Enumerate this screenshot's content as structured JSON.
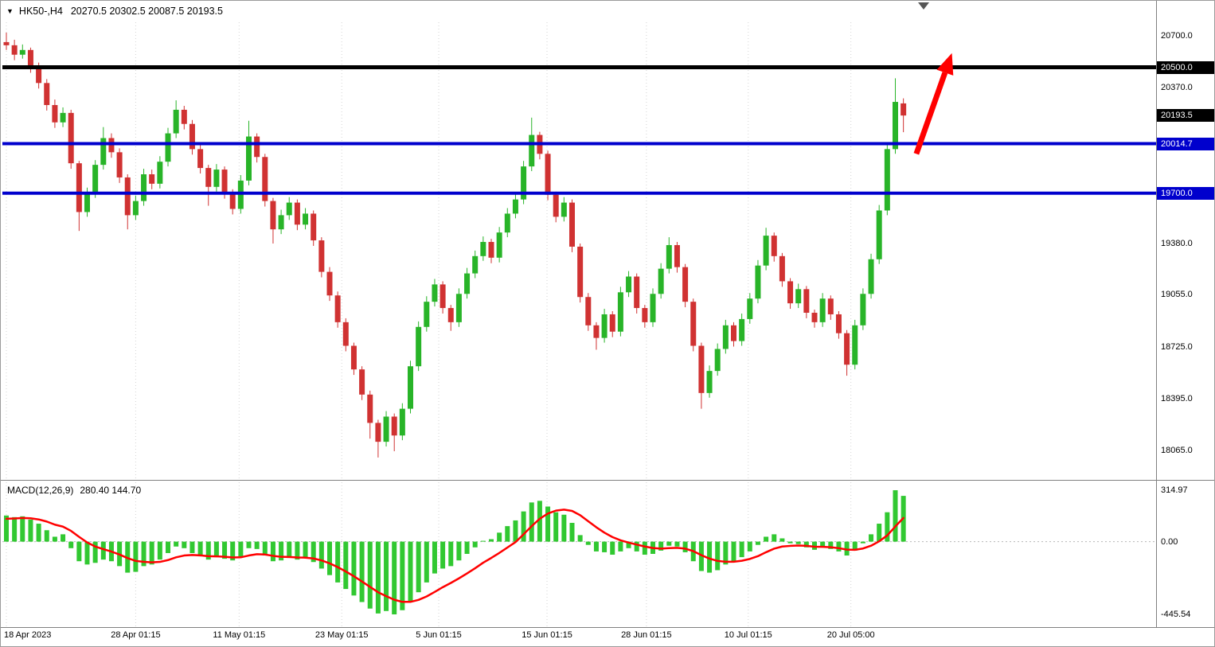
{
  "title_bar": {
    "collapse_icon": "▼",
    "symbol_period": "HK50-,H4",
    "ohlc_text": "20270.5 20302.5 20087.5 20193.5"
  },
  "chart_data": {
    "type": "candlestick",
    "symbol": "HK50-",
    "timeframe": "H4",
    "last_candle": {
      "open": 20270.5,
      "high": 20302.5,
      "low": 20087.5,
      "close": 20193.5
    },
    "price_range": {
      "min": 17888,
      "max": 20786
    },
    "price_ticks": [
      {
        "label": "20700.0",
        "value": 20700
      },
      {
        "label": "20370.0",
        "value": 20370
      },
      {
        "label": "19380.0",
        "value": 19380
      },
      {
        "label": "19055.0",
        "value": 19055
      },
      {
        "label": "18725.0",
        "value": 18725
      },
      {
        "label": "18395.0",
        "value": 18395
      },
      {
        "label": "18065.0",
        "value": 18065
      }
    ],
    "price_badges": [
      {
        "label": "20500.0",
        "value": 20500,
        "bg": "#000000"
      },
      {
        "label": "20193.5",
        "value": 20193.5,
        "bg": "#000000"
      },
      {
        "label": "20014.7",
        "value": 20014.7,
        "bg": "#0000cd"
      },
      {
        "label": "19700.0",
        "value": 19700,
        "bg": "#0000cd"
      }
    ],
    "hlines": [
      {
        "value": 20500,
        "color": "#000000",
        "width": 5
      },
      {
        "value": 20014.7,
        "color": "#0000cd",
        "width": 4
      },
      {
        "value": 19700,
        "color": "#0000cd",
        "width": 4
      }
    ],
    "date_ticks": [
      {
        "label": "18 Apr 2023",
        "index": 0
      },
      {
        "label": "28 Apr 01:15",
        "index": 16
      },
      {
        "label": "11 May 01:15",
        "index": 28.8
      },
      {
        "label": "23 May 01:15",
        "index": 41.5
      },
      {
        "label": "5 Jun 01:15",
        "index": 53.5
      },
      {
        "label": "15 Jun 01:15",
        "index": 66.9
      },
      {
        "label": "28 Jun 01:15",
        "index": 79.2
      },
      {
        "label": "10 Jul 01:15",
        "index": 91.8
      },
      {
        "label": "20 Jul 05:00",
        "index": 104.5
      }
    ],
    "candles": [
      [
        20660,
        20720,
        20610,
        20640
      ],
      [
        20640,
        20675,
        20545,
        20580
      ],
      [
        20580,
        20645,
        20555,
        20610
      ],
      [
        20610,
        20625,
        20465,
        20500
      ],
      [
        20500,
        20530,
        20365,
        20400
      ],
      [
        20400,
        20425,
        20225,
        20260
      ],
      [
        20260,
        20295,
        20115,
        20150
      ],
      [
        20150,
        20245,
        20120,
        20210
      ],
      [
        20210,
        20230,
        19855,
        19890
      ],
      [
        19890,
        19905,
        19460,
        19580
      ],
      [
        19580,
        19735,
        19550,
        19700
      ],
      [
        19700,
        19910,
        19670,
        19880
      ],
      [
        19880,
        20120,
        19850,
        20050
      ],
      [
        20050,
        20080,
        19925,
        19960
      ],
      [
        19960,
        19985,
        19765,
        19800
      ],
      [
        19800,
        19820,
        19470,
        19560
      ],
      [
        19560,
        19685,
        19530,
        19650
      ],
      [
        19650,
        19855,
        19620,
        19820
      ],
      [
        19820,
        19850,
        19725,
        19760
      ],
      [
        19760,
        19935,
        19730,
        19900
      ],
      [
        19900,
        20115,
        19870,
        20080
      ],
      [
        20080,
        20290,
        20050,
        20230
      ],
      [
        20230,
        20255,
        20105,
        20140
      ],
      [
        20140,
        20165,
        19945,
        19980
      ],
      [
        19980,
        20005,
        19825,
        19860
      ],
      [
        19860,
        19880,
        19620,
        19740
      ],
      [
        19740,
        19885,
        19710,
        19850
      ],
      [
        19850,
        19870,
        19665,
        19700
      ],
      [
        19700,
        19725,
        19565,
        19600
      ],
      [
        19600,
        19815,
        19570,
        19780
      ],
      [
        19780,
        20160,
        19750,
        20060
      ],
      [
        20060,
        20080,
        19895,
        19930
      ],
      [
        19930,
        19950,
        19615,
        19650
      ],
      [
        19650,
        19670,
        19380,
        19470
      ],
      [
        19470,
        19595,
        19440,
        19560
      ],
      [
        19560,
        19675,
        19530,
        19640
      ],
      [
        19640,
        19660,
        19465,
        19500
      ],
      [
        19500,
        19605,
        19470,
        19570
      ],
      [
        19570,
        19590,
        19365,
        19400
      ],
      [
        19400,
        19420,
        19165,
        19200
      ],
      [
        19200,
        19230,
        19015,
        19050
      ],
      [
        19050,
        19075,
        18845,
        18880
      ],
      [
        18880,
        18905,
        18695,
        18730
      ],
      [
        18730,
        18750,
        18545,
        18580
      ],
      [
        18580,
        18600,
        18385,
        18420
      ],
      [
        18420,
        18445,
        18140,
        18240
      ],
      [
        18240,
        18260,
        18020,
        18120
      ],
      [
        18120,
        18315,
        18090,
        18280
      ],
      [
        18280,
        18300,
        18060,
        18160
      ],
      [
        18160,
        18365,
        18130,
        18330
      ],
      [
        18330,
        18635,
        18300,
        18600
      ],
      [
        18600,
        18885,
        18570,
        18850
      ],
      [
        18850,
        19045,
        18820,
        19010
      ],
      [
        19010,
        19155,
        18980,
        19120
      ],
      [
        19120,
        19140,
        18935,
        18970
      ],
      [
        18970,
        18990,
        18825,
        18880
      ],
      [
        18880,
        19095,
        18850,
        19060
      ],
      [
        19060,
        19225,
        19030,
        19190
      ],
      [
        19190,
        19335,
        19160,
        19300
      ],
      [
        19300,
        19425,
        19270,
        19390
      ],
      [
        19390,
        19410,
        19255,
        19290
      ],
      [
        19290,
        19485,
        19260,
        19450
      ],
      [
        19450,
        19605,
        19420,
        19570
      ],
      [
        19570,
        19695,
        19540,
        19660
      ],
      [
        19660,
        19905,
        19630,
        19870
      ],
      [
        19870,
        20180,
        19840,
        20070
      ],
      [
        20070,
        20090,
        19915,
        19950
      ],
      [
        19950,
        19970,
        19655,
        19690
      ],
      [
        19690,
        19710,
        19515,
        19550
      ],
      [
        19550,
        19675,
        19520,
        19640
      ],
      [
        19640,
        19660,
        19325,
        19360
      ],
      [
        19360,
        19380,
        19005,
        19040
      ],
      [
        19040,
        19065,
        18825,
        18860
      ],
      [
        18860,
        18880,
        18705,
        18780
      ],
      [
        18780,
        18965,
        18750,
        18930
      ],
      [
        18930,
        18950,
        18785,
        18820
      ],
      [
        18820,
        19105,
        18790,
        19070
      ],
      [
        19070,
        19205,
        19040,
        19170
      ],
      [
        19170,
        19190,
        18935,
        18970
      ],
      [
        18970,
        18990,
        18845,
        18880
      ],
      [
        18880,
        19095,
        18850,
        19060
      ],
      [
        19060,
        19255,
        19030,
        19220
      ],
      [
        19220,
        19420,
        19190,
        19370
      ],
      [
        19370,
        19390,
        19195,
        19230
      ],
      [
        19230,
        19250,
        18975,
        19010
      ],
      [
        19010,
        19030,
        18695,
        18730
      ],
      [
        18730,
        18750,
        18330,
        18430
      ],
      [
        18430,
        18605,
        18400,
        18570
      ],
      [
        18570,
        18745,
        18540,
        18710
      ],
      [
        18710,
        18895,
        18680,
        18860
      ],
      [
        18860,
        18880,
        18725,
        18760
      ],
      [
        18760,
        18935,
        18730,
        18900
      ],
      [
        18900,
        19065,
        18870,
        19030
      ],
      [
        19030,
        19275,
        19000,
        19240
      ],
      [
        19240,
        19480,
        19210,
        19430
      ],
      [
        19430,
        19450,
        19265,
        19300
      ],
      [
        19300,
        19320,
        19105,
        19140
      ],
      [
        19140,
        19160,
        18965,
        19000
      ],
      [
        19000,
        19125,
        18970,
        19090
      ],
      [
        19090,
        19110,
        18905,
        18940
      ],
      [
        18940,
        18960,
        18845,
        18880
      ],
      [
        18880,
        19065,
        18850,
        19030
      ],
      [
        19030,
        19050,
        18895,
        18930
      ],
      [
        18930,
        18950,
        18775,
        18810
      ],
      [
        18810,
        18830,
        18540,
        18610
      ],
      [
        18610,
        18895,
        18580,
        18860
      ],
      [
        18860,
        19095,
        18830,
        19060
      ],
      [
        19060,
        19315,
        19030,
        19280
      ],
      [
        19280,
        19625,
        19250,
        19590
      ],
      [
        19590,
        20015,
        19560,
        19980
      ],
      [
        19980,
        20430,
        19950,
        20280
      ],
      [
        20270.5,
        20302.5,
        20087.5,
        20193.5
      ]
    ],
    "macd": {
      "label": "MACD(12,26,9)",
      "values_text": "280.40 144.70",
      "main_value": 280.4,
      "signal_value": 144.7,
      "range": {
        "min": -518.7,
        "max": 363.7
      },
      "ticks": [
        {
          "label": "314.97",
          "value": 314.97
        },
        {
          "label": "0.00",
          "value": 0
        },
        {
          "label": "-445.54",
          "value": -445.54
        }
      ],
      "histogram": [
        160,
        150,
        155,
        135,
        110,
        70,
        30,
        45,
        -40,
        -120,
        -140,
        -130,
        -110,
        -120,
        -150,
        -190,
        -185,
        -150,
        -140,
        -110,
        -70,
        -30,
        -40,
        -70,
        -90,
        -110,
        -95,
        -105,
        -115,
        -90,
        -40,
        -45,
        -85,
        -120,
        -115,
        -100,
        -110,
        -100,
        -125,
        -165,
        -205,
        -250,
        -290,
        -330,
        -370,
        -410,
        -440,
        -425,
        -445.54,
        -420,
        -370,
        -310,
        -250,
        -195,
        -165,
        -150,
        -115,
        -75,
        -35,
        5,
        15,
        55,
        95,
        130,
        185,
        240,
        250,
        215,
        180,
        165,
        115,
        40,
        -20,
        -60,
        -65,
        -80,
        -60,
        -40,
        -60,
        -80,
        -75,
        -55,
        -25,
        -30,
        -65,
        -120,
        -180,
        -190,
        -175,
        -140,
        -125,
        -95,
        -60,
        -20,
        30,
        45,
        20,
        -10,
        -15,
        -35,
        -50,
        -35,
        -45,
        -60,
        -85,
        -55,
        -10,
        45,
        110,
        180,
        314.97,
        280.4
      ],
      "signal": [
        140,
        142,
        145,
        143,
        136,
        123,
        104,
        92,
        66,
        29,
        -5,
        -30,
        -46,
        -61,
        -79,
        -101,
        -118,
        -124,
        -127,
        -124,
        -113,
        -96,
        -85,
        -82,
        -84,
        -89,
        -90,
        -93,
        -97,
        -96,
        -85,
        -77,
        -79,
        -87,
        -93,
        -94,
        -97,
        -98,
        -103,
        -115,
        -133,
        -156,
        -183,
        -212,
        -244,
        -277,
        -310,
        -334,
        -356,
        -369,
        -369,
        -357,
        -336,
        -308,
        -279,
        -253,
        -225,
        -195,
        -163,
        -129,
        -100,
        -69,
        -36,
        -3,
        45,
        95,
        140,
        172,
        190,
        196,
        188,
        162,
        125,
        88,
        55,
        28,
        8,
        -6,
        -18,
        -30,
        -39,
        -43,
        -40,
        -38,
        -43,
        -58,
        -83,
        -104,
        -118,
        -123,
        -123,
        -117,
        -106,
        -89,
        -65,
        -43,
        -30,
        -26,
        -24,
        -26,
        -31,
        -32,
        -34,
        -40,
        -49,
        -50,
        -42,
        -25,
        2,
        38,
        93,
        144.7
      ]
    },
    "arrow_annotation": {
      "from_index": 112.6,
      "from_price": 19950,
      "to_index": 117,
      "to_price": 20590
    },
    "shift_marker_index": 113.5,
    "colors": {
      "up": "#28b428",
      "down": "#d03232",
      "grid": "#d4d4d4",
      "macd_hist": "#31c831",
      "macd_signal": "#ff0000",
      "arrow": "#ff0000",
      "line_black": "#000000",
      "line_blue": "#0000cd"
    }
  }
}
